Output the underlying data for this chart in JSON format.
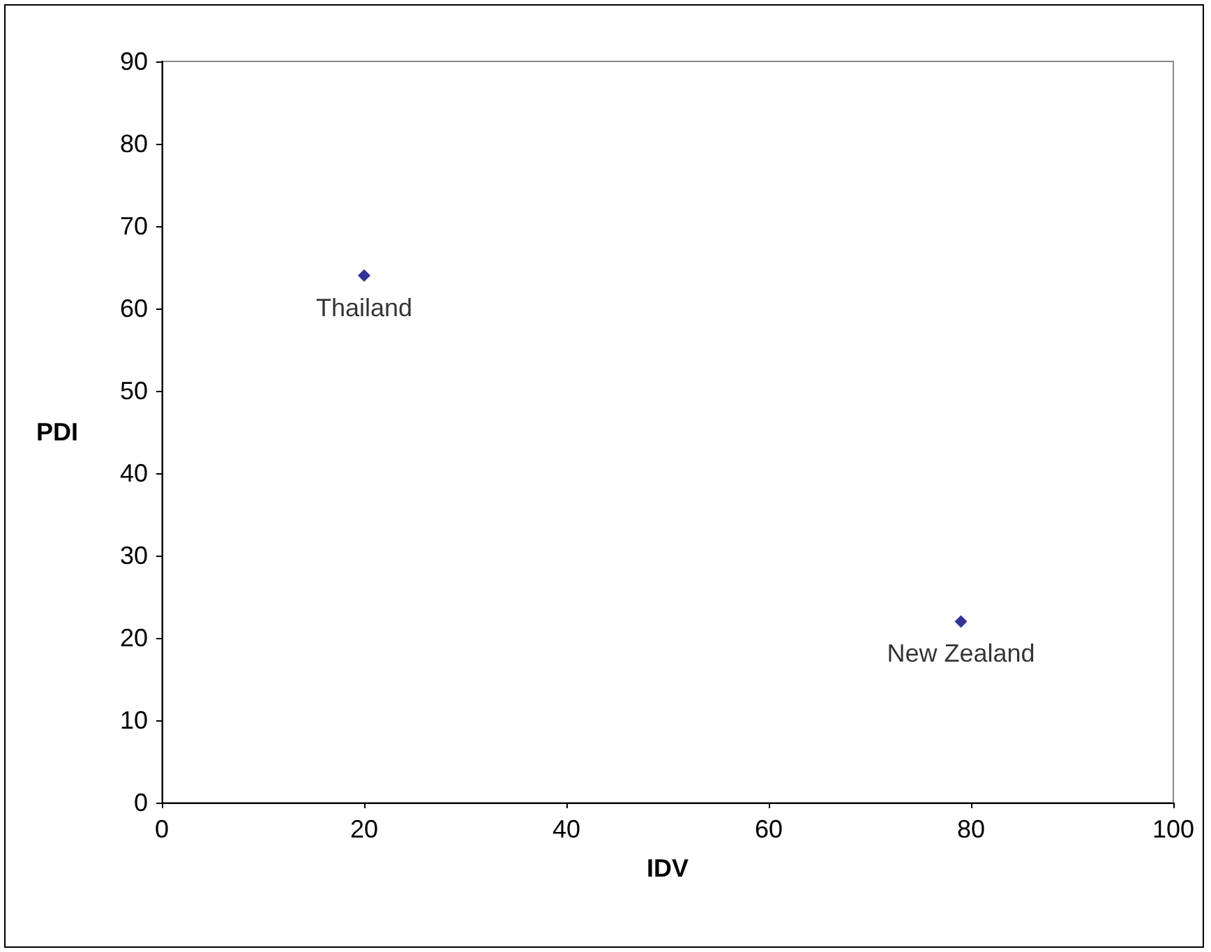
{
  "chart_data": {
    "type": "scatter",
    "xlabel": "IDV",
    "ylabel": "PDI",
    "x": [
      20,
      79
    ],
    "values": [
      64,
      22
    ],
    "color": "#000080",
    "marker": "diamond",
    "xlim": [
      0,
      100
    ],
    "xticks": [
      0,
      20,
      40,
      60,
      80,
      100
    ],
    "ylim": [
      0,
      90
    ],
    "yticks": [
      0,
      10,
      20,
      30,
      40,
      50,
      60,
      70,
      80,
      90
    ],
    "grid": false,
    "annotations": [
      {
        "text": "Thailand",
        "x": 20,
        "y": 64
      },
      {
        "text": "New Zealand",
        "x": 79,
        "y": 22
      }
    ]
  }
}
